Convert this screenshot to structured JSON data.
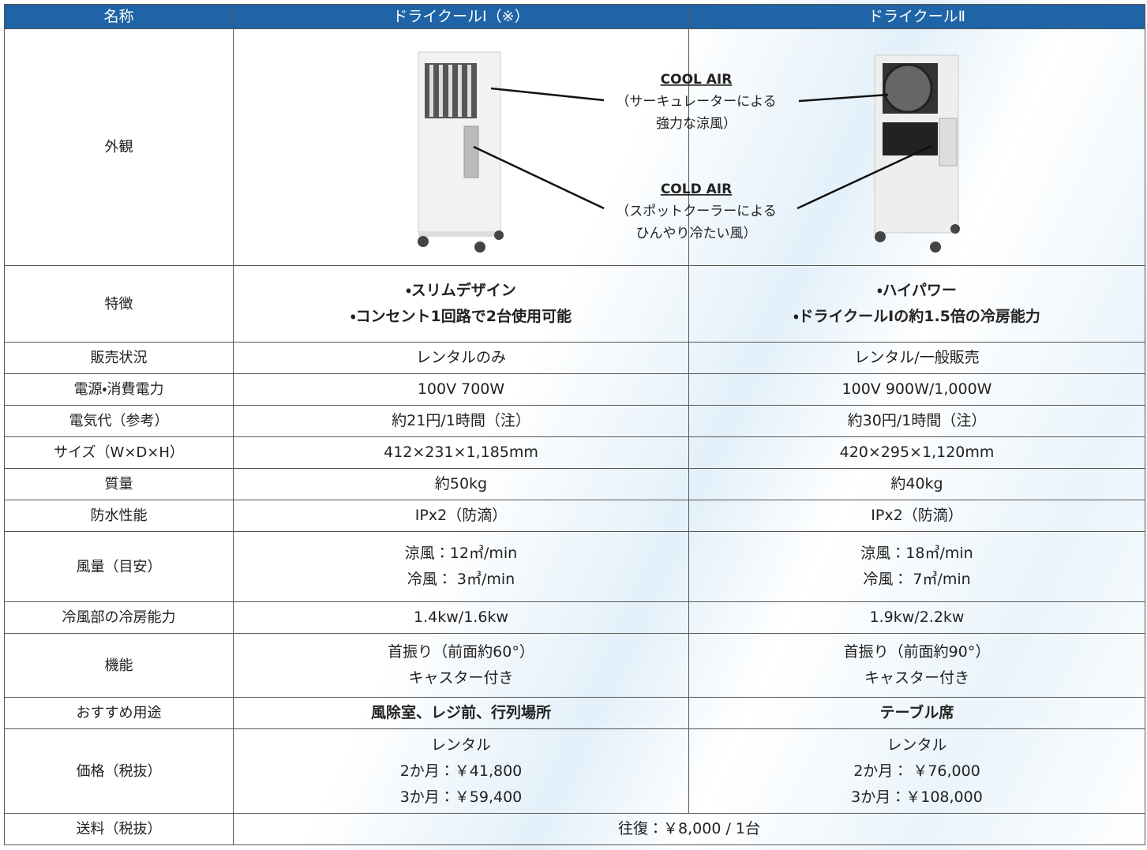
{
  "header": [
    "名称",
    "ドライクールⅠ（※）",
    "ドライクールⅡ"
  ],
  "appearance": {
    "label": "外観",
    "cool_air": {
      "title": "COOL AIR",
      "lines": [
        "（サーキュレーターによる",
        "強力な涼風）"
      ]
    },
    "cold_air": {
      "title": "COLD AIR",
      "lines": [
        "（スポットクーラーによる",
        "ひんやり冷たい風）"
      ]
    }
  },
  "rows": [
    {
      "label": "特徴",
      "model_1": [
        "・スリムデザイン",
        "・コンセント1回路で2台使用可能"
      ],
      "model_2": [
        "・ハイパワー",
        "・ドライクールⅠの約1.5倍の冷房能力"
      ]
    },
    {
      "label": "販売状況",
      "model_1": [
        "レンタルのみ"
      ],
      "model_2": [
        "レンタル/一般販売"
      ]
    },
    {
      "label": "電源・消費電力",
      "model_1": [
        "100V 700W"
      ],
      "model_2": [
        "100V 900W/1,000W"
      ]
    },
    {
      "label": "電気代（参考）",
      "model_1": [
        "約21円/1時間（注）"
      ],
      "model_2": [
        "約30円/1時間（注）"
      ]
    },
    {
      "label": "サイズ（W×D×H）",
      "model_1": [
        "412×231×1,185mm"
      ],
      "model_2": [
        "420×295×1,120mm"
      ]
    },
    {
      "label": "質量",
      "model_1": [
        "約50kg"
      ],
      "model_2": [
        "約40kg"
      ]
    },
    {
      "label": "防水性能",
      "model_1": [
        "IPx2（防滴）"
      ],
      "model_2": [
        "IPx2（防滴）"
      ]
    },
    {
      "label": "風量（目安）",
      "model_1": [
        "涼風：12㎥/min",
        "冷風： 3㎥/min"
      ],
      "model_2": [
        "涼風：18㎥/min",
        "冷風： 7㎥/min"
      ]
    },
    {
      "label": "冷風部の冷房能力",
      "model_1": [
        "1.4kw/1.6kw"
      ],
      "model_2": [
        "1.9kw/2.2kw"
      ]
    },
    {
      "label": "機能",
      "model_1": [
        "首振り（前面約60°）",
        "キャスター付き"
      ],
      "model_2": [
        "首振り（前面約90°）",
        "キャスター付き"
      ]
    },
    {
      "label": "おすすめ用途",
      "model_1": [
        "風除室、レジ前、行列場所"
      ],
      "model_2": [
        "テーブル席"
      ]
    },
    {
      "label": "価格（税抜）",
      "model_1": [
        "レンタル",
        "2か月：￥41,800",
        "3か月：￥59,400"
      ],
      "model_2": [
        "レンタル",
        "2か月： ￥76,000",
        "3か月：￥108,000"
      ]
    }
  ],
  "shipping": {
    "label": "送料（税抜）",
    "value": "往復：￥8,000 / 1台"
  }
}
